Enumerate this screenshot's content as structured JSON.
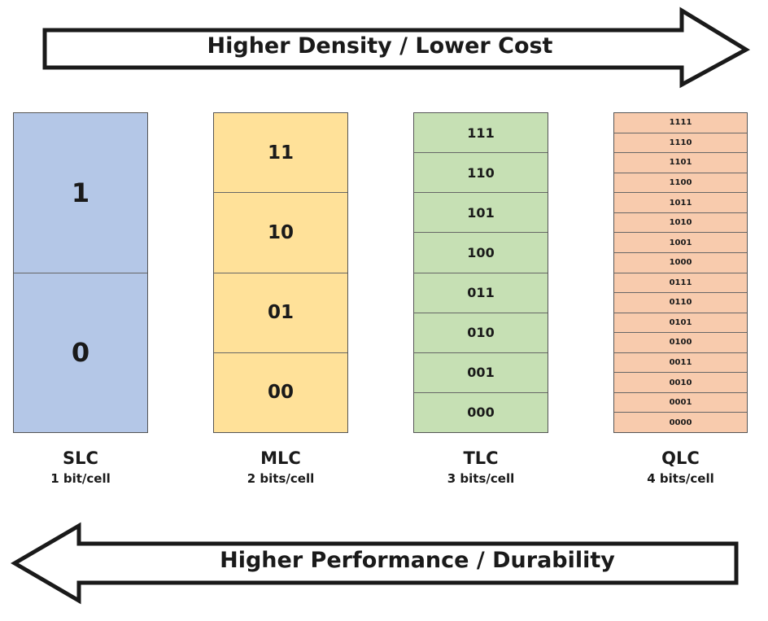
{
  "arrows": {
    "top": {
      "label": "Higher Density / Lower Cost",
      "direction": "right"
    },
    "bottom": {
      "label": "Higher Performance / Durability",
      "direction": "left"
    }
  },
  "columns": [
    {
      "name": "SLC",
      "bits": "1 bit/cell",
      "color": "#b4c7e7",
      "cells": [
        "1",
        "0"
      ]
    },
    {
      "name": "MLC",
      "bits": "2 bits/cell",
      "color": "#ffe199",
      "cells": [
        "11",
        "10",
        "01",
        "00"
      ]
    },
    {
      "name": "TLC",
      "bits": "3 bits/cell",
      "color": "#c6e0b4",
      "cells": [
        "111",
        "110",
        "101",
        "100",
        "011",
        "010",
        "001",
        "000"
      ]
    },
    {
      "name": "QLC",
      "bits": "4 bits/cell",
      "color": "#f8cbad",
      "cells": [
        "1111",
        "1110",
        "1101",
        "1100",
        "1011",
        "1010",
        "1001",
        "1000",
        "0111",
        "0110",
        "0101",
        "0100",
        "0011",
        "0010",
        "0001",
        "0000"
      ]
    }
  ]
}
